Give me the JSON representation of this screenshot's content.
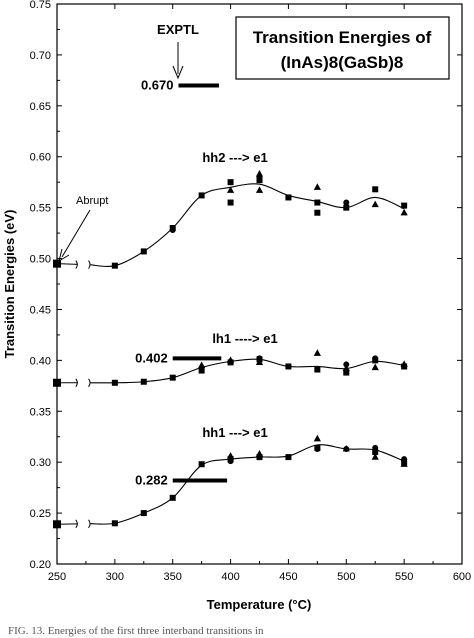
{
  "chart_data": {
    "type": "scatter",
    "title_lines": [
      "Transition Energies of",
      "(InAs)8(GaSb)8"
    ],
    "xlabel": "Temperature (°C)",
    "ylabel": "Transition Energies (eV)",
    "xlim": [
      250,
      600
    ],
    "ylim": [
      0.2,
      0.75
    ],
    "x_ticks": [
      "250",
      "300",
      "350",
      "400",
      "450",
      "500",
      "550",
      "600"
    ],
    "y_ticks": [
      "0.20",
      "0.25",
      "0.30",
      "0.35",
      "0.40",
      "0.45",
      "0.50",
      "0.55",
      "0.60",
      "0.65",
      "0.70",
      "0.75"
    ],
    "axis_break": true,
    "series": [
      {
        "name": "hh2 ---> e1",
        "curve": [
          [
            250,
            0.495
          ],
          [
            300,
            0.493
          ],
          [
            325,
            0.507
          ],
          [
            350,
            0.53
          ],
          [
            375,
            0.562
          ],
          [
            400,
            0.57
          ],
          [
            425,
            0.573
          ],
          [
            450,
            0.562
          ],
          [
            475,
            0.556
          ],
          [
            500,
            0.55
          ],
          [
            525,
            0.56
          ],
          [
            550,
            0.549
          ]
        ],
        "squares": [
          [
            250,
            0.495
          ],
          [
            300,
            0.493
          ],
          [
            325,
            0.507
          ],
          [
            350,
            0.53
          ],
          [
            375,
            0.562
          ],
          [
            400,
            0.555
          ],
          [
            400,
            0.575
          ],
          [
            425,
            0.577
          ],
          [
            450,
            0.56
          ],
          [
            475,
            0.555
          ],
          [
            475,
            0.545
          ],
          [
            500,
            0.55
          ],
          [
            525,
            0.568
          ],
          [
            550,
            0.552
          ]
        ],
        "circles": [
          [
            350,
            0.528
          ],
          [
            425,
            0.58
          ],
          [
            450,
            0.56
          ],
          [
            500,
            0.555
          ]
        ],
        "triangles": [
          [
            400,
            0.567
          ],
          [
            425,
            0.583
          ],
          [
            425,
            0.567
          ],
          [
            475,
            0.57
          ],
          [
            525,
            0.553
          ],
          [
            550,
            0.545
          ]
        ]
      },
      {
        "name": "lh1 ----> e1",
        "curve": [
          [
            250,
            0.378
          ],
          [
            300,
            0.378
          ],
          [
            325,
            0.379
          ],
          [
            350,
            0.383
          ],
          [
            375,
            0.393
          ],
          [
            400,
            0.399
          ],
          [
            425,
            0.401
          ],
          [
            450,
            0.394
          ],
          [
            475,
            0.394
          ],
          [
            500,
            0.392
          ],
          [
            525,
            0.399
          ],
          [
            550,
            0.395
          ]
        ],
        "squares": [
          [
            250,
            0.378
          ],
          [
            300,
            0.378
          ],
          [
            325,
            0.379
          ],
          [
            350,
            0.383
          ],
          [
            375,
            0.39
          ],
          [
            400,
            0.398
          ],
          [
            425,
            0.401
          ],
          [
            450,
            0.394
          ],
          [
            475,
            0.391
          ],
          [
            500,
            0.388
          ],
          [
            525,
            0.4
          ],
          [
            550,
            0.394
          ]
        ],
        "circles": [
          [
            425,
            0.402
          ],
          [
            500,
            0.396
          ],
          [
            525,
            0.402
          ]
        ],
        "triangles": [
          [
            375,
            0.395
          ],
          [
            400,
            0.4
          ],
          [
            425,
            0.398
          ],
          [
            475,
            0.407
          ],
          [
            500,
            0.392
          ],
          [
            525,
            0.393
          ],
          [
            550,
            0.396
          ]
        ]
      },
      {
        "name": "hh1 ---> e1",
        "curve": [
          [
            250,
            0.239
          ],
          [
            300,
            0.24
          ],
          [
            325,
            0.25
          ],
          [
            350,
            0.265
          ],
          [
            375,
            0.297
          ],
          [
            400,
            0.303
          ],
          [
            425,
            0.305
          ],
          [
            450,
            0.306
          ],
          [
            475,
            0.317
          ],
          [
            500,
            0.313
          ],
          [
            525,
            0.312
          ],
          [
            550,
            0.301
          ]
        ],
        "squares": [
          [
            250,
            0.239
          ],
          [
            300,
            0.24
          ],
          [
            325,
            0.25
          ],
          [
            350,
            0.265
          ],
          [
            375,
            0.298
          ],
          [
            400,
            0.303
          ],
          [
            425,
            0.305
          ],
          [
            450,
            0.305
          ],
          [
            475,
            0.314
          ],
          [
            525,
            0.31
          ],
          [
            550,
            0.3
          ]
        ],
        "circles": [
          [
            400,
            0.301
          ],
          [
            425,
            0.305
          ],
          [
            475,
            0.313
          ],
          [
            500,
            0.313
          ],
          [
            525,
            0.314
          ],
          [
            550,
            0.303
          ]
        ],
        "triangles": [
          [
            400,
            0.306
          ],
          [
            425,
            0.308
          ],
          [
            475,
            0.323
          ],
          [
            500,
            0.313
          ],
          [
            525,
            0.305
          ],
          [
            550,
            0.298
          ]
        ]
      }
    ],
    "reference_bars": [
      {
        "label": "0.670",
        "value": 0.67,
        "x_range": [
          355,
          390
        ]
      },
      {
        "label": "0.402",
        "value": 0.402,
        "x_range": [
          350,
          392
        ]
      },
      {
        "label": "0.282",
        "value": 0.282,
        "x_range": [
          350,
          397
        ]
      }
    ],
    "annotations": {
      "exptl": "EXPTL",
      "abrupt": "Abrupt",
      "series_labels": [
        "hh2 ---> e1",
        "lh1 ----> e1",
        "hh1 ---> e1"
      ]
    }
  },
  "caption_fragment": "FIG. 13. Energies of the first three interband transitions in"
}
